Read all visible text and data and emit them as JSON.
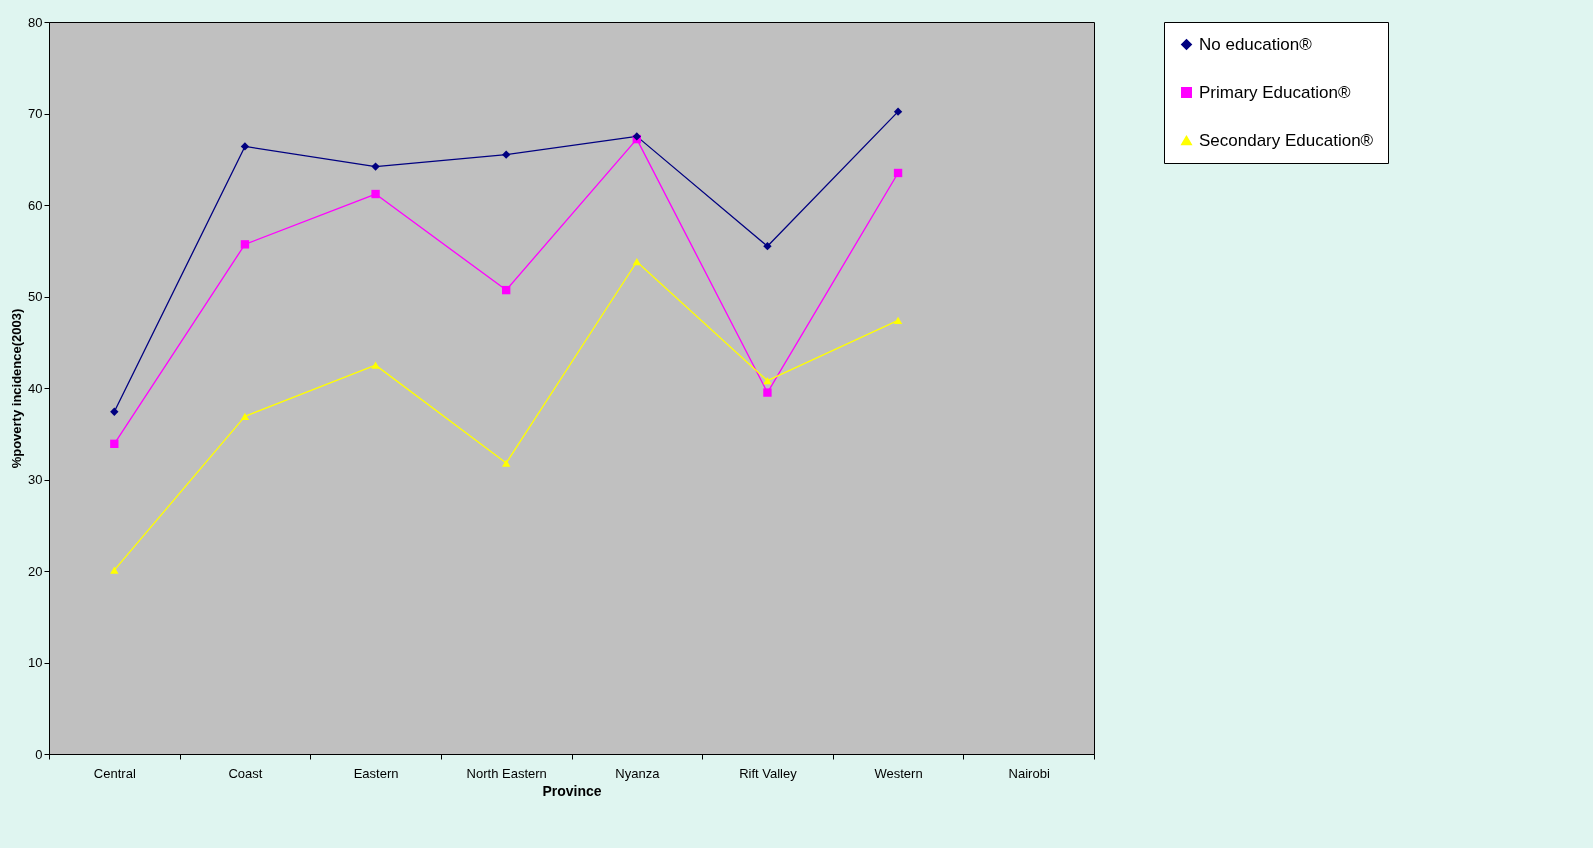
{
  "chart_data": {
    "type": "line",
    "xlabel": "Province",
    "ylabel": "%poverty incidence(2003)",
    "categories": [
      "Central",
      "Coast",
      "Eastern",
      "North Eastern",
      "Nyanza",
      "Rift Valley",
      "Western",
      "Nairobi"
    ],
    "ylim": [
      0,
      80
    ],
    "yticks": [
      0,
      10,
      20,
      30,
      40,
      50,
      60,
      70,
      80
    ],
    "grid": false,
    "legend": "right",
    "series": [
      {
        "name": "No education®",
        "color": "#000080",
        "marker": "diamond",
        "values": [
          37.4,
          66.4,
          64.2,
          65.5,
          67.5,
          55.5,
          70.2,
          null
        ]
      },
      {
        "name": "Primary Education®",
        "color": "#ff00ff",
        "marker": "square",
        "values": [
          33.9,
          55.7,
          61.2,
          50.7,
          67.2,
          39.5,
          63.5,
          null
        ]
      },
      {
        "name": "Secondary Education®",
        "color": "#ffff00",
        "marker": "triangle",
        "values": [
          20.1,
          36.9,
          42.5,
          31.8,
          53.8,
          40.8,
          47.4,
          null
        ]
      }
    ]
  }
}
